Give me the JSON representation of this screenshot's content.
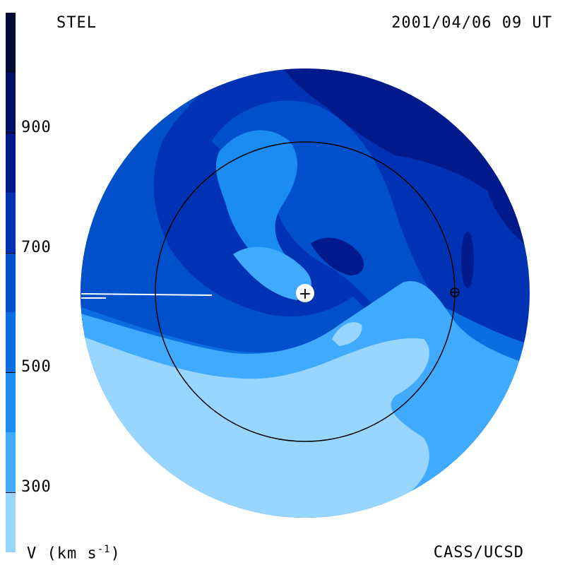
{
  "header": {
    "title_left": "STEL",
    "title_right": "2001/04/06 09 UT"
  },
  "footer": {
    "legend_unit_prefix": "V (km s",
    "legend_unit_sup": "-1",
    "legend_unit_suffix": ")",
    "credit": "CASS/UCSD"
  },
  "colorbar": {
    "colors": [
      "#000a33",
      "#001266",
      "#001a8c",
      "#0033b3",
      "#0050cc",
      "#0a6ee0",
      "#1a8cf2",
      "#40aaff",
      "#99d6ff"
    ],
    "ticks": [
      {
        "label": "900",
        "value": 900
      },
      {
        "label": "700",
        "value": 700
      },
      {
        "label": "500",
        "value": 500
      },
      {
        "label": "300",
        "value": 300
      }
    ],
    "range": [
      200,
      1100
    ]
  },
  "map": {
    "palette": {
      "v250": "#99d6ff",
      "v350": "#40aaff",
      "v450": "#1a8cf2",
      "v500": "#0a6ee0",
      "v550": "#0050cc",
      "v650": "#0033b3",
      "v750": "#001a8c"
    },
    "sun_symbol": "+",
    "earth_symbol": "⊕"
  }
}
